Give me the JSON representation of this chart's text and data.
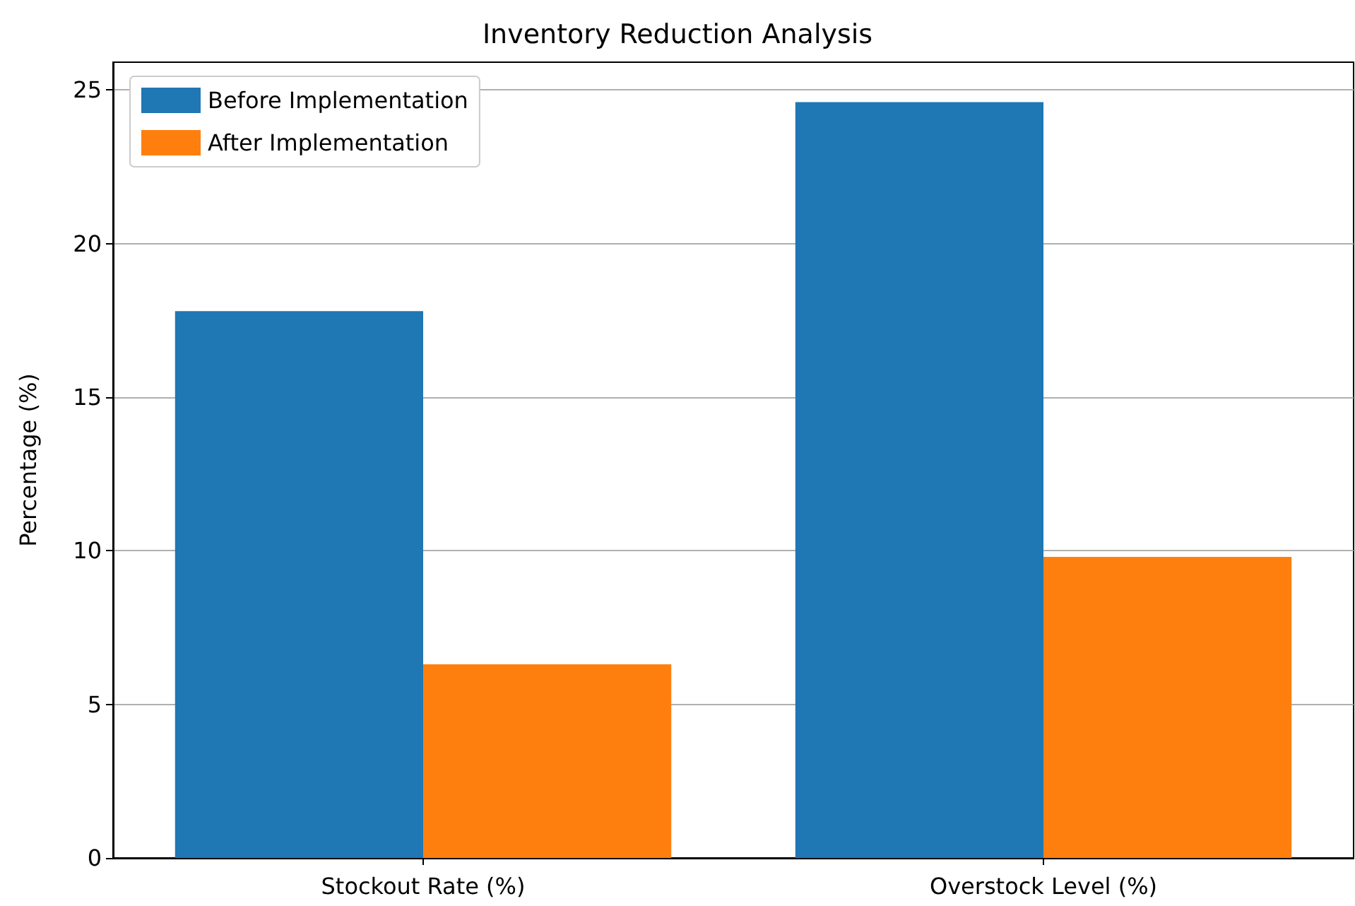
{
  "chart_data": {
    "type": "bar",
    "title": "Inventory Reduction Analysis",
    "ylabel": "Percentage (%)",
    "categories": [
      "Stockout Rate (%)",
      "Overstock Level (%)"
    ],
    "series": [
      {
        "name": "Before Implementation",
        "color": "#1f77b4",
        "values": [
          17.8,
          24.6
        ]
      },
      {
        "name": "After Implementation",
        "color": "#ff7f0e",
        "values": [
          6.3,
          9.8
        ]
      }
    ],
    "ylim": [
      0,
      25.9
    ],
    "yticks": [
      0,
      5,
      10,
      15,
      20,
      25
    ],
    "grid": "y",
    "legend": "top left"
  }
}
